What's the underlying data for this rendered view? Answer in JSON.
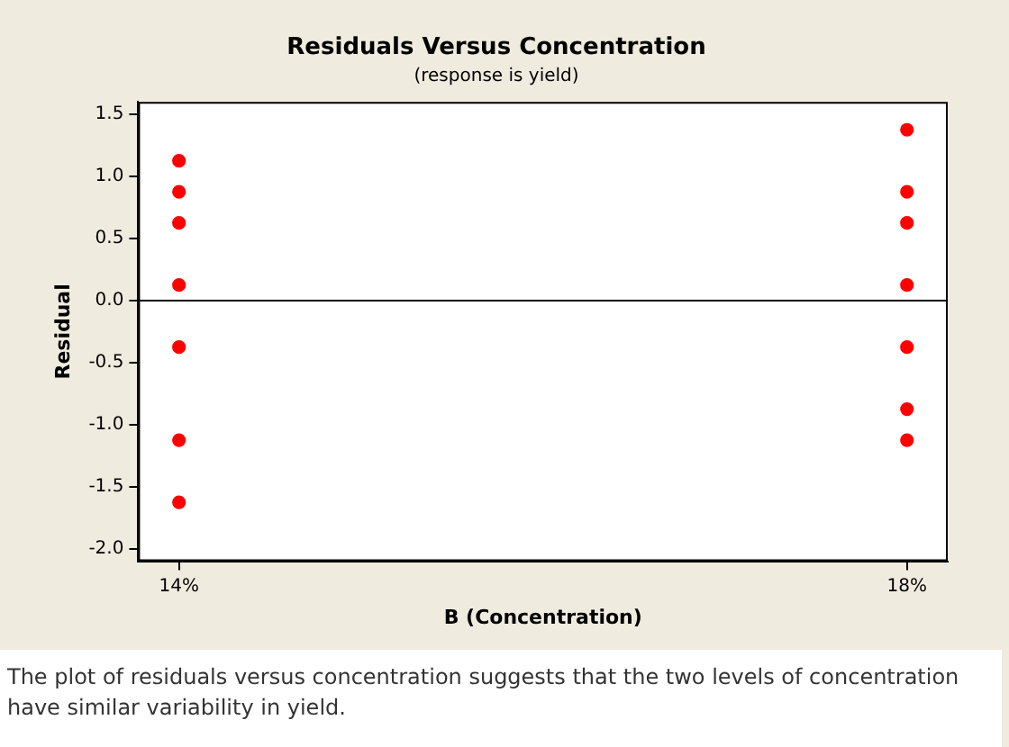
{
  "chart_data": {
    "type": "scatter",
    "title": "Residuals Versus Concentration",
    "subtitle": "(response is yield)",
    "xlabel": "B (Concentration)",
    "ylabel": "Residual",
    "series": [
      {
        "color": "#ff0000",
        "x": [
          "14%",
          "14%",
          "14%",
          "14%",
          "14%",
          "14%",
          "14%",
          "18%",
          "18%",
          "18%",
          "18%",
          "18%",
          "18%",
          "18%"
        ],
        "values": [
          1.125,
          0.875,
          0.625,
          0.125,
          -0.375,
          -1.125,
          -1.625,
          1.375,
          0.875,
          0.625,
          0.125,
          -0.375,
          -0.875,
          -1.125
        ]
      }
    ],
    "categories": [
      "14%",
      "18%"
    ],
    "ylim": [
      -2.1,
      1.6
    ],
    "yticks": [
      {
        "value": -2,
        "label": "-2.0"
      },
      -1.5,
      {
        "value": -1,
        "label": "-1.0"
      },
      -0.5,
      {
        "value": 0,
        "label": "0.0"
      },
      0.5,
      {
        "value": 1,
        "label": "1.0"
      },
      1.5
    ],
    "ref_lines": [
      {
        "axis": "y",
        "value": 0,
        "color": "#000000"
      }
    ],
    "marker": "circle",
    "grid": false,
    "legend": false,
    "annotations": [
      "The plot of residuals versus concentration suggests that the two levels of concentration have similar variability in yield."
    ]
  }
}
